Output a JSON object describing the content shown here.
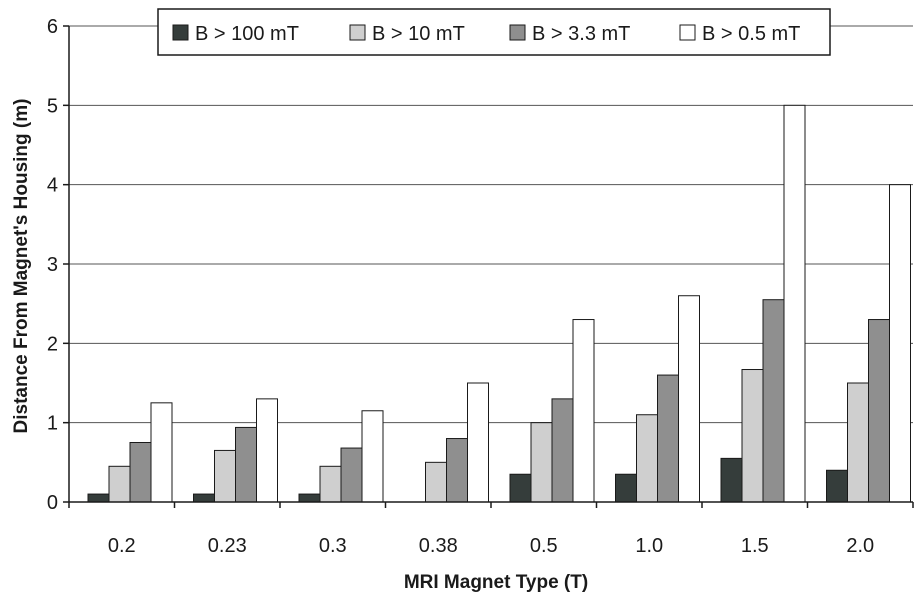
{
  "chart_data": {
    "type": "bar",
    "xlabel": "MRI Magnet Type (T)",
    "ylabel": "Distance From Magnet's Housing (m)",
    "categories": [
      "0.2",
      "0.23",
      "0.3",
      "0.38",
      "0.5",
      "1.0",
      "1.5",
      "2.0"
    ],
    "ylim": [
      0,
      6
    ],
    "yticks": [
      "0",
      "1",
      "2",
      "3",
      "4",
      "5",
      "6"
    ],
    "grid": true,
    "legend_position": "top",
    "series": [
      {
        "name": "B > 100 mT",
        "color": "#353d3b",
        "values": [
          0.1,
          0.1,
          0.1,
          0,
          0.35,
          0.35,
          0.55,
          0.4
        ]
      },
      {
        "name": "B > 10 mT",
        "color": "#cfcfcf",
        "values": [
          0.45,
          0.65,
          0.45,
          0.5,
          1.0,
          1.1,
          1.67,
          1.5
        ]
      },
      {
        "name": "B > 3.3 mT",
        "color": "#8f8f8f",
        "values": [
          0.75,
          0.94,
          0.68,
          0.8,
          1.3,
          1.6,
          2.55,
          2.3
        ]
      },
      {
        "name": "B > 0.5 mT",
        "color": "#ffffff",
        "values": [
          1.25,
          1.3,
          1.15,
          1.5,
          2.3,
          2.6,
          5.0,
          4.0
        ]
      }
    ]
  }
}
